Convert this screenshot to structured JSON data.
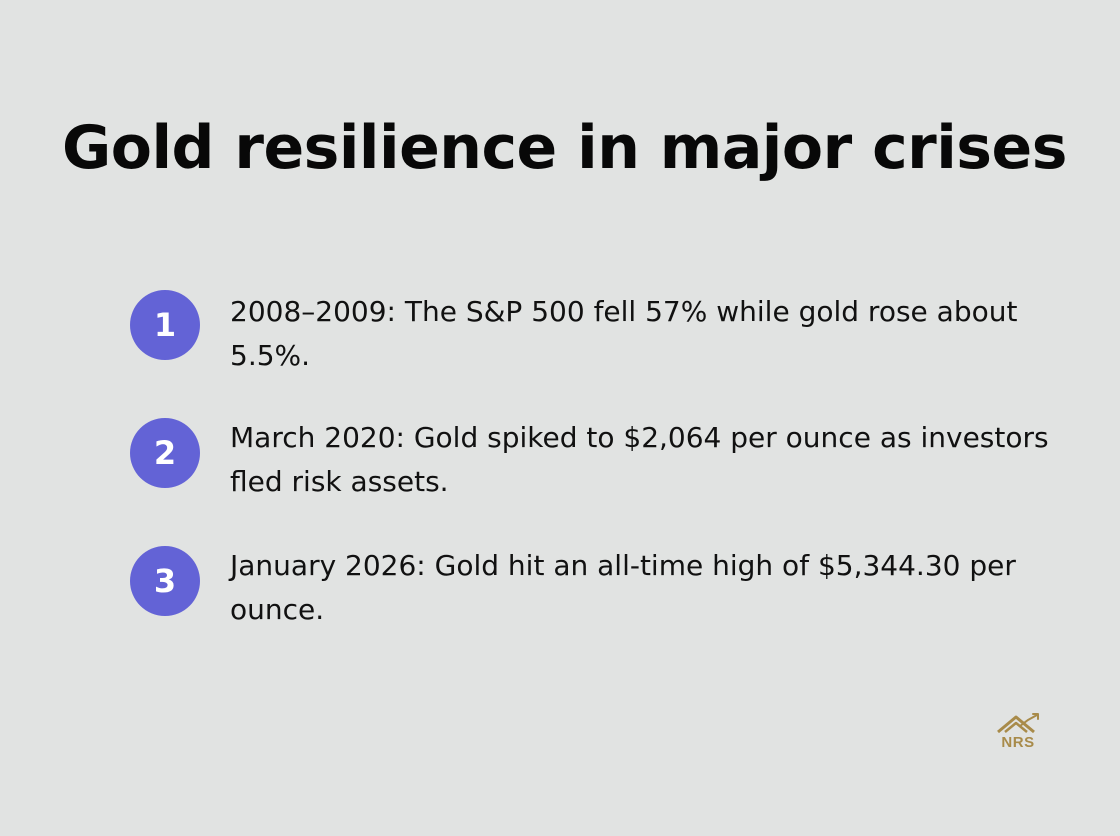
{
  "title": "Gold resilience in major crises",
  "items": [
    {
      "number": "1",
      "text": "2008–2009: The S&P 500 fell 57% while gold rose about 5.5%."
    },
    {
      "number": "2",
      "text": "March 2020: Gold spiked to $2,064 per ounce as investors fled risk assets."
    },
    {
      "number": "3",
      "text": "January 2026: Gold hit an all-time high of $5,344.30 per ounce."
    }
  ],
  "logo": {
    "text": "NRS",
    "icon": "house-chart-icon"
  },
  "colors": {
    "background": "#e1e3e2",
    "badge": "#6363d6",
    "logo": "#a88b4a"
  }
}
